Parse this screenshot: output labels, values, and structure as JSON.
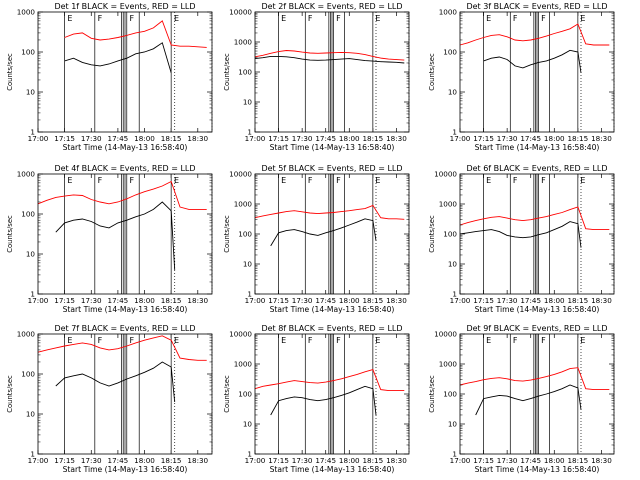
{
  "figure": {
    "xlabel": "Start Time (14-May-13 16:58:40)",
    "ylabel": "Counts/sec",
    "series_colors": {
      "events": "#000000",
      "lld": "#ff0000"
    },
    "interval_letters": [
      "E",
      "F",
      "F",
      "E"
    ]
  },
  "chart_data": [
    {
      "type": "line",
      "title": "Det 1f BLACK = Events, RED = LLD",
      "xlim": [
        "17:00",
        "18:38"
      ],
      "ylim": [
        1,
        1000
      ],
      "yscale": "log",
      "x_ticks": [
        "17:00",
        "17:15",
        "17:30",
        "17:45",
        "18:00",
        "18:15",
        "18:30"
      ],
      "y_ticks": [
        "1",
        "10",
        "100",
        "1000"
      ],
      "series": [
        {
          "color": "red",
          "x": [
            "17:15",
            "17:20",
            "17:25",
            "17:30",
            "17:35",
            "17:40",
            "17:45",
            "17:50",
            "17:55",
            "18:00",
            "18:05",
            "18:10",
            "18:15",
            "18:20",
            "18:25",
            "18:30",
            "18:35"
          ],
          "values": [
            230,
            280,
            300,
            220,
            200,
            210,
            230,
            260,
            300,
            330,
            400,
            600,
            150,
            140,
            140,
            135,
            130
          ]
        },
        {
          "color": "black",
          "x": [
            "17:15",
            "17:20",
            "17:25",
            "17:30",
            "17:35",
            "17:40",
            "17:45",
            "17:50",
            "17:55",
            "18:00",
            "18:05",
            "18:10",
            "18:15"
          ],
          "values": [
            60,
            70,
            55,
            48,
            45,
            50,
            60,
            70,
            90,
            100,
            120,
            170,
            30
          ]
        }
      ]
    },
    {
      "type": "line",
      "title": "Det 2f BLACK = Events, RED = LLD",
      "xlim": [
        "17:00",
        "18:38"
      ],
      "ylim": [
        1,
        10000
      ],
      "yscale": "log",
      "x_ticks": [
        "17:00",
        "17:15",
        "17:30",
        "17:45",
        "18:00",
        "18:15",
        "18:30"
      ],
      "y_ticks": [
        "1",
        "10",
        "100",
        "1000",
        "10000"
      ],
      "series": [
        {
          "color": "red",
          "x": [
            "17:00",
            "17:05",
            "17:10",
            "17:15",
            "17:20",
            "17:25",
            "17:30",
            "17:35",
            "17:40",
            "17:45",
            "17:50",
            "17:55",
            "18:00",
            "18:05",
            "18:10",
            "18:15",
            "18:20",
            "18:25",
            "18:30",
            "18:35"
          ],
          "values": [
            320,
            360,
            420,
            480,
            520,
            500,
            460,
            430,
            420,
            430,
            440,
            450,
            440,
            420,
            380,
            330,
            290,
            270,
            260,
            250
          ]
        },
        {
          "color": "black",
          "x": [
            "17:00",
            "17:05",
            "17:10",
            "17:15",
            "17:20",
            "17:25",
            "17:30",
            "17:35",
            "17:40",
            "17:45",
            "17:50",
            "17:55",
            "18:00",
            "18:05",
            "18:10",
            "18:15",
            "18:20",
            "18:25",
            "18:30",
            "18:35"
          ],
          "values": [
            280,
            300,
            330,
            330,
            320,
            300,
            270,
            250,
            245,
            250,
            260,
            270,
            280,
            260,
            240,
            230,
            220,
            215,
            210,
            200
          ]
        }
      ]
    },
    {
      "type": "line",
      "title": "Det 3f BLACK = Events, RED = LLD",
      "xlim": [
        "17:00",
        "18:38"
      ],
      "ylim": [
        1,
        1000
      ],
      "yscale": "log",
      "x_ticks": [
        "17:00",
        "17:15",
        "17:30",
        "17:45",
        "18:00",
        "18:15",
        "18:30"
      ],
      "y_ticks": [
        "1",
        "10",
        "100",
        "1000"
      ],
      "series": [
        {
          "color": "red",
          "x": [
            "17:00",
            "17:05",
            "17:10",
            "17:15",
            "17:20",
            "17:25",
            "17:30",
            "17:35",
            "17:40",
            "17:45",
            "17:50",
            "17:55",
            "18:00",
            "18:05",
            "18:10",
            "18:15",
            "18:20",
            "18:25",
            "18:30",
            "18:35"
          ],
          "values": [
            150,
            170,
            200,
            230,
            260,
            270,
            240,
            200,
            190,
            200,
            220,
            250,
            290,
            330,
            380,
            500,
            160,
            150,
            150,
            150
          ]
        },
        {
          "color": "black",
          "x": [
            "17:15",
            "17:20",
            "17:25",
            "17:30",
            "17:35",
            "17:40",
            "17:45",
            "17:50",
            "17:55",
            "18:00",
            "18:05",
            "18:10",
            "18:15",
            "18:17"
          ],
          "values": [
            60,
            70,
            75,
            65,
            45,
            40,
            48,
            55,
            60,
            70,
            85,
            110,
            100,
            30
          ]
        }
      ]
    },
    {
      "type": "line",
      "title": "Det 4f BLACK = Events, RED = LLD",
      "xlim": [
        "17:00",
        "18:38"
      ],
      "ylim": [
        1,
        1000
      ],
      "yscale": "log",
      "x_ticks": [
        "17:00",
        "17:15",
        "17:30",
        "17:45",
        "18:00",
        "18:15",
        "18:30"
      ],
      "y_ticks": [
        "1",
        "10",
        "100",
        "1000"
      ],
      "series": [
        {
          "color": "red",
          "x": [
            "17:00",
            "17:05",
            "17:10",
            "17:15",
            "17:20",
            "17:25",
            "17:30",
            "17:35",
            "17:40",
            "17:45",
            "17:50",
            "17:55",
            "18:00",
            "18:05",
            "18:10",
            "18:15",
            "18:20",
            "18:25",
            "18:30",
            "18:35"
          ],
          "values": [
            180,
            220,
            260,
            280,
            300,
            290,
            230,
            200,
            180,
            200,
            240,
            300,
            360,
            420,
            500,
            650,
            150,
            130,
            130,
            130
          ]
        },
        {
          "color": "black",
          "x": [
            "17:10",
            "17:15",
            "17:20",
            "17:25",
            "17:30",
            "17:35",
            "17:40",
            "17:45",
            "17:50",
            "17:55",
            "18:00",
            "18:05",
            "18:10",
            "18:15",
            "18:17"
          ],
          "values": [
            35,
            60,
            70,
            75,
            65,
            50,
            45,
            60,
            70,
            85,
            100,
            130,
            200,
            120,
            4
          ]
        }
      ]
    },
    {
      "type": "line",
      "title": "Det 5f BLACK = Events, RED = LLD",
      "xlim": [
        "17:00",
        "18:38"
      ],
      "ylim": [
        1,
        10000
      ],
      "yscale": "log",
      "x_ticks": [
        "17:00",
        "17:15",
        "17:30",
        "17:45",
        "18:00",
        "18:15",
        "18:30"
      ],
      "y_ticks": [
        "1",
        "10",
        "100",
        "1000",
        "10000"
      ],
      "series": [
        {
          "color": "red",
          "x": [
            "17:00",
            "17:05",
            "17:10",
            "17:15",
            "17:20",
            "17:25",
            "17:30",
            "17:35",
            "17:40",
            "17:45",
            "17:50",
            "17:55",
            "18:00",
            "18:05",
            "18:10",
            "18:15",
            "18:20",
            "18:25",
            "18:30",
            "18:35"
          ],
          "values": [
            350,
            400,
            450,
            500,
            560,
            600,
            550,
            500,
            480,
            500,
            520,
            560,
            600,
            650,
            700,
            900,
            350,
            320,
            320,
            310
          ]
        },
        {
          "color": "black",
          "x": [
            "17:10",
            "17:15",
            "17:20",
            "17:25",
            "17:30",
            "17:35",
            "17:40",
            "17:45",
            "17:50",
            "17:55",
            "18:00",
            "18:05",
            "18:10",
            "18:15",
            "18:17"
          ],
          "values": [
            40,
            110,
            130,
            140,
            120,
            100,
            90,
            110,
            130,
            160,
            200,
            250,
            320,
            280,
            60
          ]
        }
      ]
    },
    {
      "type": "line",
      "title": "Det 6f BLACK = Events, RED = LLD",
      "xlim": [
        "17:00",
        "18:38"
      ],
      "ylim": [
        1,
        10000
      ],
      "yscale": "log",
      "x_ticks": [
        "17:00",
        "17:15",
        "17:30",
        "17:45",
        "18:00",
        "18:15",
        "18:30"
      ],
      "y_ticks": [
        "1",
        "10",
        "100",
        "1000",
        "10000"
      ],
      "series": [
        {
          "color": "red",
          "x": [
            "17:00",
            "17:05",
            "17:10",
            "17:15",
            "17:20",
            "17:25",
            "17:30",
            "17:35",
            "17:40",
            "17:45",
            "17:50",
            "17:55",
            "18:00",
            "18:05",
            "18:10",
            "18:15",
            "18:20",
            "18:25",
            "18:30",
            "18:35"
          ],
          "values": [
            200,
            240,
            280,
            320,
            360,
            380,
            340,
            300,
            280,
            300,
            340,
            380,
            450,
            520,
            650,
            800,
            150,
            140,
            140,
            140
          ]
        },
        {
          "color": "black",
          "x": [
            "17:00",
            "17:05",
            "17:10",
            "17:15",
            "17:20",
            "17:25",
            "17:30",
            "17:35",
            "17:40",
            "17:45",
            "17:50",
            "17:55",
            "18:00",
            "18:05",
            "18:10",
            "18:15",
            "18:17"
          ],
          "values": [
            100,
            110,
            120,
            130,
            140,
            120,
            90,
            80,
            75,
            80,
            95,
            110,
            140,
            180,
            260,
            220,
            35
          ]
        }
      ]
    },
    {
      "type": "line",
      "title": "Det 7f BLACK = Events, RED = LLD",
      "xlim": [
        "17:00",
        "18:38"
      ],
      "ylim": [
        1,
        1000
      ],
      "yscale": "log",
      "x_ticks": [
        "17:00",
        "17:15",
        "17:30",
        "17:45",
        "18:00",
        "18:15",
        "18:30"
      ],
      "y_ticks": [
        "1",
        "10",
        "100",
        "1000"
      ],
      "series": [
        {
          "color": "red",
          "x": [
            "17:00",
            "17:05",
            "17:10",
            "17:15",
            "17:20",
            "17:25",
            "17:30",
            "17:35",
            "17:40",
            "17:45",
            "17:50",
            "17:55",
            "18:00",
            "18:05",
            "18:10",
            "18:15",
            "18:20",
            "18:25",
            "18:30",
            "18:35"
          ],
          "values": [
            350,
            400,
            450,
            500,
            550,
            600,
            550,
            450,
            400,
            430,
            500,
            600,
            700,
            800,
            900,
            700,
            250,
            230,
            220,
            220
          ]
        },
        {
          "color": "black",
          "x": [
            "17:10",
            "17:15",
            "17:20",
            "17:25",
            "17:30",
            "17:35",
            "17:40",
            "17:45",
            "17:50",
            "17:55",
            "18:00",
            "18:05",
            "18:10",
            "18:15",
            "18:17"
          ],
          "values": [
            50,
            80,
            90,
            100,
            80,
            60,
            50,
            60,
            75,
            90,
            110,
            140,
            200,
            150,
            20
          ]
        }
      ]
    },
    {
      "type": "line",
      "title": "Det 8f BLACK = Events, RED = LLD",
      "xlim": [
        "17:00",
        "18:38"
      ],
      "ylim": [
        1,
        10000
      ],
      "yscale": "log",
      "x_ticks": [
        "17:00",
        "17:15",
        "17:30",
        "17:45",
        "18:00",
        "18:15",
        "18:30"
      ],
      "y_ticks": [
        "1",
        "10",
        "100",
        "1000",
        "10000"
      ],
      "series": [
        {
          "color": "red",
          "x": [
            "17:00",
            "17:05",
            "17:10",
            "17:15",
            "17:20",
            "17:25",
            "17:30",
            "17:35",
            "17:40",
            "17:45",
            "17:50",
            "17:55",
            "18:00",
            "18:05",
            "18:10",
            "18:15",
            "18:20",
            "18:25",
            "18:30",
            "18:35"
          ],
          "values": [
            150,
            180,
            200,
            220,
            250,
            280,
            260,
            240,
            230,
            250,
            280,
            320,
            380,
            450,
            550,
            650,
            140,
            130,
            130,
            130
          ]
        },
        {
          "color": "black",
          "x": [
            "17:10",
            "17:15",
            "17:20",
            "17:25",
            "17:30",
            "17:35",
            "17:40",
            "17:45",
            "17:50",
            "17:55",
            "18:00",
            "18:05",
            "18:10",
            "18:15",
            "18:17"
          ],
          "values": [
            20,
            60,
            70,
            80,
            75,
            65,
            60,
            65,
            75,
            90,
            110,
            140,
            180,
            150,
            20
          ]
        }
      ]
    },
    {
      "type": "line",
      "title": "Det 9f BLACK = Events, RED = LLD",
      "xlim": [
        "17:00",
        "18:38"
      ],
      "ylim": [
        1,
        10000
      ],
      "yscale": "log",
      "x_ticks": [
        "17:00",
        "17:15",
        "17:30",
        "17:45",
        "18:00",
        "18:15",
        "18:30"
      ],
      "y_ticks": [
        "1",
        "10",
        "100",
        "1000",
        "10000"
      ],
      "series": [
        {
          "color": "red",
          "x": [
            "17:00",
            "17:05",
            "17:10",
            "17:15",
            "17:20",
            "17:25",
            "17:30",
            "17:35",
            "17:40",
            "17:45",
            "17:50",
            "17:55",
            "18:00",
            "18:05",
            "18:10",
            "18:15",
            "18:20",
            "18:25",
            "18:30",
            "18:35"
          ],
          "values": [
            200,
            230,
            260,
            300,
            330,
            350,
            320,
            280,
            270,
            290,
            330,
            380,
            450,
            550,
            700,
            750,
            150,
            140,
            140,
            140
          ]
        },
        {
          "color": "black",
          "x": [
            "17:10",
            "17:15",
            "17:20",
            "17:25",
            "17:30",
            "17:35",
            "17:40",
            "17:45",
            "17:50",
            "17:55",
            "18:00",
            "18:05",
            "18:10",
            "18:15",
            "18:17"
          ],
          "values": [
            20,
            70,
            80,
            90,
            85,
            70,
            60,
            70,
            85,
            100,
            120,
            150,
            200,
            160,
            30
          ]
        }
      ]
    }
  ]
}
